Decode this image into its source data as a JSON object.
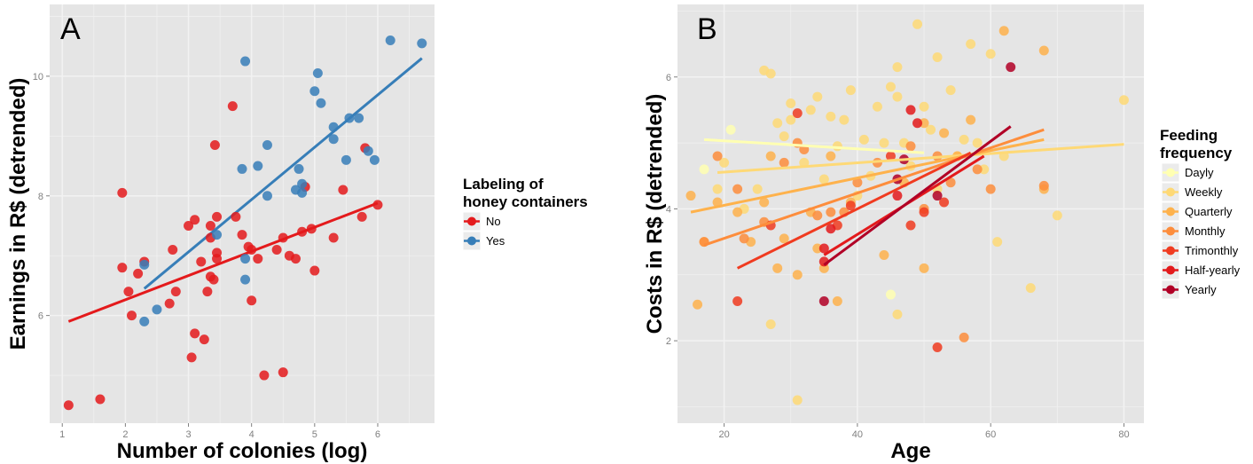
{
  "chart_data": [
    {
      "panel_label": "A",
      "type": "scatter",
      "xlabel": "Number of colonies (log)",
      "ylabel": "Earnings in R$ (detrended)",
      "xlim": [
        0.8,
        6.9
      ],
      "ylim": [
        4.2,
        11.2
      ],
      "x_ticks": [
        1,
        2,
        3,
        4,
        5,
        6
      ],
      "y_ticks": [
        6,
        8,
        10
      ],
      "grid": true,
      "legend": {
        "title_lines": [
          "Labeling of",
          "honey containers"
        ],
        "position": "right"
      },
      "series": [
        {
          "name": "No",
          "color": "#e41a1c",
          "points": [
            [
              1.1,
              4.5
            ],
            [
              1.6,
              4.6
            ],
            [
              1.95,
              8.05
            ],
            [
              1.95,
              6.8
            ],
            [
              2.05,
              6.4
            ],
            [
              2.1,
              6.0
            ],
            [
              2.2,
              6.7
            ],
            [
              2.3,
              6.9
            ],
            [
              2.7,
              6.2
            ],
            [
              2.75,
              7.1
            ],
            [
              2.8,
              6.4
            ],
            [
              3.0,
              7.5
            ],
            [
              3.05,
              5.3
            ],
            [
              3.1,
              5.7
            ],
            [
              3.1,
              7.6
            ],
            [
              3.2,
              6.9
            ],
            [
              3.25,
              5.6
            ],
            [
              3.3,
              6.4
            ],
            [
              3.35,
              6.65
            ],
            [
              3.35,
              7.3
            ],
            [
              3.35,
              7.5
            ],
            [
              3.4,
              6.6
            ],
            [
              3.42,
              8.85
            ],
            [
              3.45,
              7.65
            ],
            [
              3.45,
              6.95
            ],
            [
              3.45,
              7.05
            ],
            [
              3.7,
              9.5
            ],
            [
              3.75,
              7.65
            ],
            [
              3.85,
              7.35
            ],
            [
              3.95,
              7.15
            ],
            [
              4.0,
              7.1
            ],
            [
              4.0,
              6.25
            ],
            [
              4.1,
              6.95
            ],
            [
              4.2,
              5.0
            ],
            [
              4.4,
              7.1
            ],
            [
              4.5,
              5.05
            ],
            [
              4.5,
              7.3
            ],
            [
              4.6,
              7.0
            ],
            [
              4.7,
              6.95
            ],
            [
              4.8,
              7.4
            ],
            [
              4.85,
              8.15
            ],
            [
              4.95,
              7.45
            ],
            [
              5.0,
              6.75
            ],
            [
              5.3,
              7.3
            ],
            [
              5.45,
              8.1
            ],
            [
              5.75,
              7.65
            ],
            [
              5.8,
              8.8
            ],
            [
              6.0,
              7.85
            ]
          ],
          "fit": [
            [
              1.1,
              5.9
            ],
            [
              6.0,
              7.88
            ]
          ]
        },
        {
          "name": "Yes",
          "color": "#377eb8",
          "points": [
            [
              2.3,
              5.9
            ],
            [
              2.3,
              6.85
            ],
            [
              2.5,
              6.1
            ],
            [
              3.45,
              7.35
            ],
            [
              3.85,
              8.45
            ],
            [
              3.9,
              10.25
            ],
            [
              3.9,
              6.95
            ],
            [
              3.9,
              6.6
            ],
            [
              4.1,
              8.5
            ],
            [
              4.25,
              8.85
            ],
            [
              4.25,
              8.0
            ],
            [
              4.7,
              8.1
            ],
            [
              4.75,
              8.45
            ],
            [
              4.8,
              8.2
            ],
            [
              4.8,
              8.05
            ],
            [
              5.0,
              9.75
            ],
            [
              5.05,
              10.05
            ],
            [
              5.1,
              9.55
            ],
            [
              5.3,
              8.95
            ],
            [
              5.3,
              9.15
            ],
            [
              5.5,
              8.6
            ],
            [
              5.55,
              9.3
            ],
            [
              5.7,
              9.3
            ],
            [
              5.85,
              8.75
            ],
            [
              5.95,
              8.6
            ],
            [
              6.2,
              10.6
            ],
            [
              6.7,
              10.55
            ]
          ],
          "fit": [
            [
              2.3,
              6.45
            ],
            [
              6.7,
              10.3
            ]
          ]
        }
      ]
    },
    {
      "panel_label": "B",
      "type": "scatter",
      "xlabel": "Age",
      "ylabel": "Costs in R$ (detrended)",
      "xlim": [
        13,
        83
      ],
      "ylim": [
        0.75,
        7.1
      ],
      "x_ticks": [
        20,
        40,
        60,
        80
      ],
      "y_ticks": [
        2,
        4,
        6
      ],
      "grid": true,
      "legend": {
        "title_lines": [
          "Feeding",
          "frequency"
        ],
        "position": "right"
      },
      "series": [
        {
          "name": "Dayly",
          "color": "#ffffb2",
          "points": [
            [
              17,
              4.6
            ],
            [
              21,
              5.2
            ],
            [
              45,
              2.7
            ]
          ],
          "fit": [
            [
              17,
              5.05
            ],
            [
              50,
              4.85
            ]
          ]
        },
        {
          "name": "Weekly",
          "color": "#fed976",
          "points": [
            [
              19,
              4.3
            ],
            [
              20,
              4.7
            ],
            [
              23,
              4.0
            ],
            [
              25,
              4.3
            ],
            [
              26,
              6.1
            ],
            [
              27,
              6.05
            ],
            [
              28,
              5.3
            ],
            [
              29,
              5.1
            ],
            [
              30,
              5.6
            ],
            [
              30,
              5.35
            ],
            [
              32,
              4.7
            ],
            [
              33,
              5.5
            ],
            [
              34,
              5.7
            ],
            [
              35,
              4.45
            ],
            [
              36,
              5.4
            ],
            [
              37,
              4.95
            ],
            [
              38,
              5.35
            ],
            [
              39,
              5.8
            ],
            [
              40,
              4.2
            ],
            [
              41,
              5.05
            ],
            [
              42,
              4.5
            ],
            [
              43,
              5.55
            ],
            [
              44,
              5.0
            ],
            [
              45,
              5.85
            ],
            [
              46,
              6.15
            ],
            [
              46,
              5.7
            ],
            [
              47,
              5.0
            ],
            [
              48,
              4.65
            ],
            [
              49,
              6.8
            ],
            [
              50,
              5.55
            ],
            [
              51,
              5.2
            ],
            [
              52,
              6.3
            ],
            [
              52,
              4.3
            ],
            [
              54,
              5.8
            ],
            [
              55,
              4.8
            ],
            [
              56,
              5.05
            ],
            [
              57,
              6.5
            ],
            [
              58,
              5.0
            ],
            [
              59,
              4.6
            ],
            [
              60,
              6.35
            ],
            [
              61,
              3.5
            ],
            [
              62,
              4.8
            ],
            [
              66,
              2.8
            ],
            [
              70,
              3.9
            ],
            [
              80,
              5.65
            ],
            [
              31,
              1.1
            ],
            [
              27,
              2.25
            ],
            [
              46,
              2.4
            ]
          ],
          "fit": [
            [
              19,
              4.55
            ],
            [
              80,
              4.98
            ]
          ]
        },
        {
          "name": "Quarterly",
          "color": "#feb24c",
          "points": [
            [
              15,
              4.2
            ],
            [
              16,
              2.55
            ],
            [
              17,
              3.5
            ],
            [
              19,
              4.1
            ],
            [
              22,
              3.95
            ],
            [
              24,
              3.5
            ],
            [
              26,
              4.1
            ],
            [
              27,
              4.8
            ],
            [
              28,
              3.1
            ],
            [
              29,
              3.55
            ],
            [
              31,
              3.0
            ],
            [
              33,
              3.95
            ],
            [
              34,
              3.4
            ],
            [
              35,
              3.1
            ],
            [
              36,
              4.8
            ],
            [
              37,
              2.6
            ],
            [
              39,
              4.1
            ],
            [
              44,
              3.3
            ],
            [
              47,
              4.4
            ],
            [
              50,
              3.1
            ],
            [
              53,
              5.15
            ],
            [
              55,
              4.8
            ],
            [
              57,
              5.35
            ],
            [
              62,
              6.7
            ],
            [
              68,
              6.4
            ],
            [
              68,
              4.3
            ],
            [
              50,
              5.3
            ]
          ],
          "fit": [
            [
              15,
              3.95
            ],
            [
              68,
              5.05
            ]
          ]
        },
        {
          "name": "Monthly",
          "color": "#fd8d3c",
          "points": [
            [
              17,
              3.5
            ],
            [
              19,
              4.8
            ],
            [
              22,
              4.3
            ],
            [
              23,
              3.55
            ],
            [
              26,
              3.8
            ],
            [
              29,
              4.7
            ],
            [
              31,
              5.0
            ],
            [
              32,
              4.9
            ],
            [
              34,
              3.9
            ],
            [
              36,
              3.95
            ],
            [
              38,
              3.95
            ],
            [
              40,
              4.4
            ],
            [
              43,
              4.7
            ],
            [
              48,
              4.95
            ],
            [
              50,
              4.0
            ],
            [
              52,
              4.8
            ],
            [
              54,
              4.4
            ],
            [
              56,
              2.05
            ],
            [
              58,
              4.6
            ],
            [
              60,
              4.3
            ],
            [
              68,
              4.35
            ]
          ],
          "fit": [
            [
              17,
              3.45
            ],
            [
              68,
              5.2
            ]
          ]
        },
        {
          "name": "Trimonthly",
          "color": "#f03b20",
          "points": [
            [
              22,
              2.6
            ],
            [
              27,
              3.75
            ],
            [
              31,
              5.45
            ],
            [
              37,
              3.75
            ],
            [
              39,
              4.05
            ],
            [
              45,
              4.8
            ],
            [
              48,
              3.75
            ],
            [
              50,
              3.95
            ],
            [
              52,
              1.9
            ],
            [
              53,
              4.1
            ]
          ],
          "fit": [
            [
              22,
              3.1
            ],
            [
              57,
              4.85
            ]
          ]
        },
        {
          "name": "Half-yearly",
          "color": "#e31a1c",
          "points": [
            [
              35,
              3.4
            ],
            [
              35,
              3.2
            ],
            [
              36,
              3.7
            ],
            [
              46,
              4.2
            ],
            [
              48,
              5.5
            ],
            [
              49,
              5.3
            ]
          ],
          "fit": [
            [
              35,
              3.3
            ],
            [
              59,
              4.8
            ]
          ]
        },
        {
          "name": "Yearly",
          "color": "#b10026",
          "points": [
            [
              35,
              2.6
            ],
            [
              46,
              4.45
            ],
            [
              47,
              4.75
            ],
            [
              52,
              4.2
            ],
            [
              63,
              6.15
            ]
          ],
          "fit": [
            [
              35,
              3.15
            ],
            [
              63,
              5.25
            ]
          ]
        }
      ]
    }
  ]
}
